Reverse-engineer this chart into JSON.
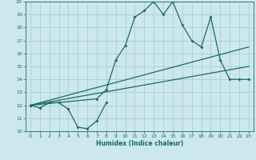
{
  "xlabel": "Humidex (Indice chaleur)",
  "xlim": [
    -0.5,
    23.5
  ],
  "ylim": [
    10,
    20
  ],
  "bg_color": "#cce8ec",
  "grid_color": "#aacdd4",
  "line_color": "#1a6b60",
  "line1_x": [
    0,
    1,
    2,
    3,
    4,
    5,
    6,
    7,
    8
  ],
  "line1_y": [
    12,
    11.8,
    12.2,
    12.2,
    11.7,
    10.3,
    10.2,
    10.8,
    12.2
  ],
  "line2_x": [
    0,
    7,
    8,
    9,
    10,
    11,
    12,
    13,
    14,
    15,
    16,
    17,
    18,
    19,
    20,
    21,
    22,
    23
  ],
  "line2_y": [
    12,
    12.5,
    13.2,
    15.5,
    16.6,
    18.8,
    19.3,
    20.0,
    19.0,
    20.0,
    18.2,
    17.0,
    16.5,
    18.8,
    15.5,
    14.0,
    14.0,
    14.0
  ],
  "line3_x": [
    0,
    23
  ],
  "line3_y": [
    12,
    16.5
  ],
  "line4_x": [
    0,
    23
  ],
  "line4_y": [
    12,
    15.0
  ],
  "xticks": [
    0,
    1,
    2,
    3,
    4,
    5,
    6,
    7,
    8,
    9,
    10,
    11,
    12,
    13,
    14,
    15,
    16,
    17,
    18,
    19,
    20,
    21,
    22,
    23
  ],
  "yticks": [
    10,
    11,
    12,
    13,
    14,
    15,
    16,
    17,
    18,
    19,
    20
  ]
}
